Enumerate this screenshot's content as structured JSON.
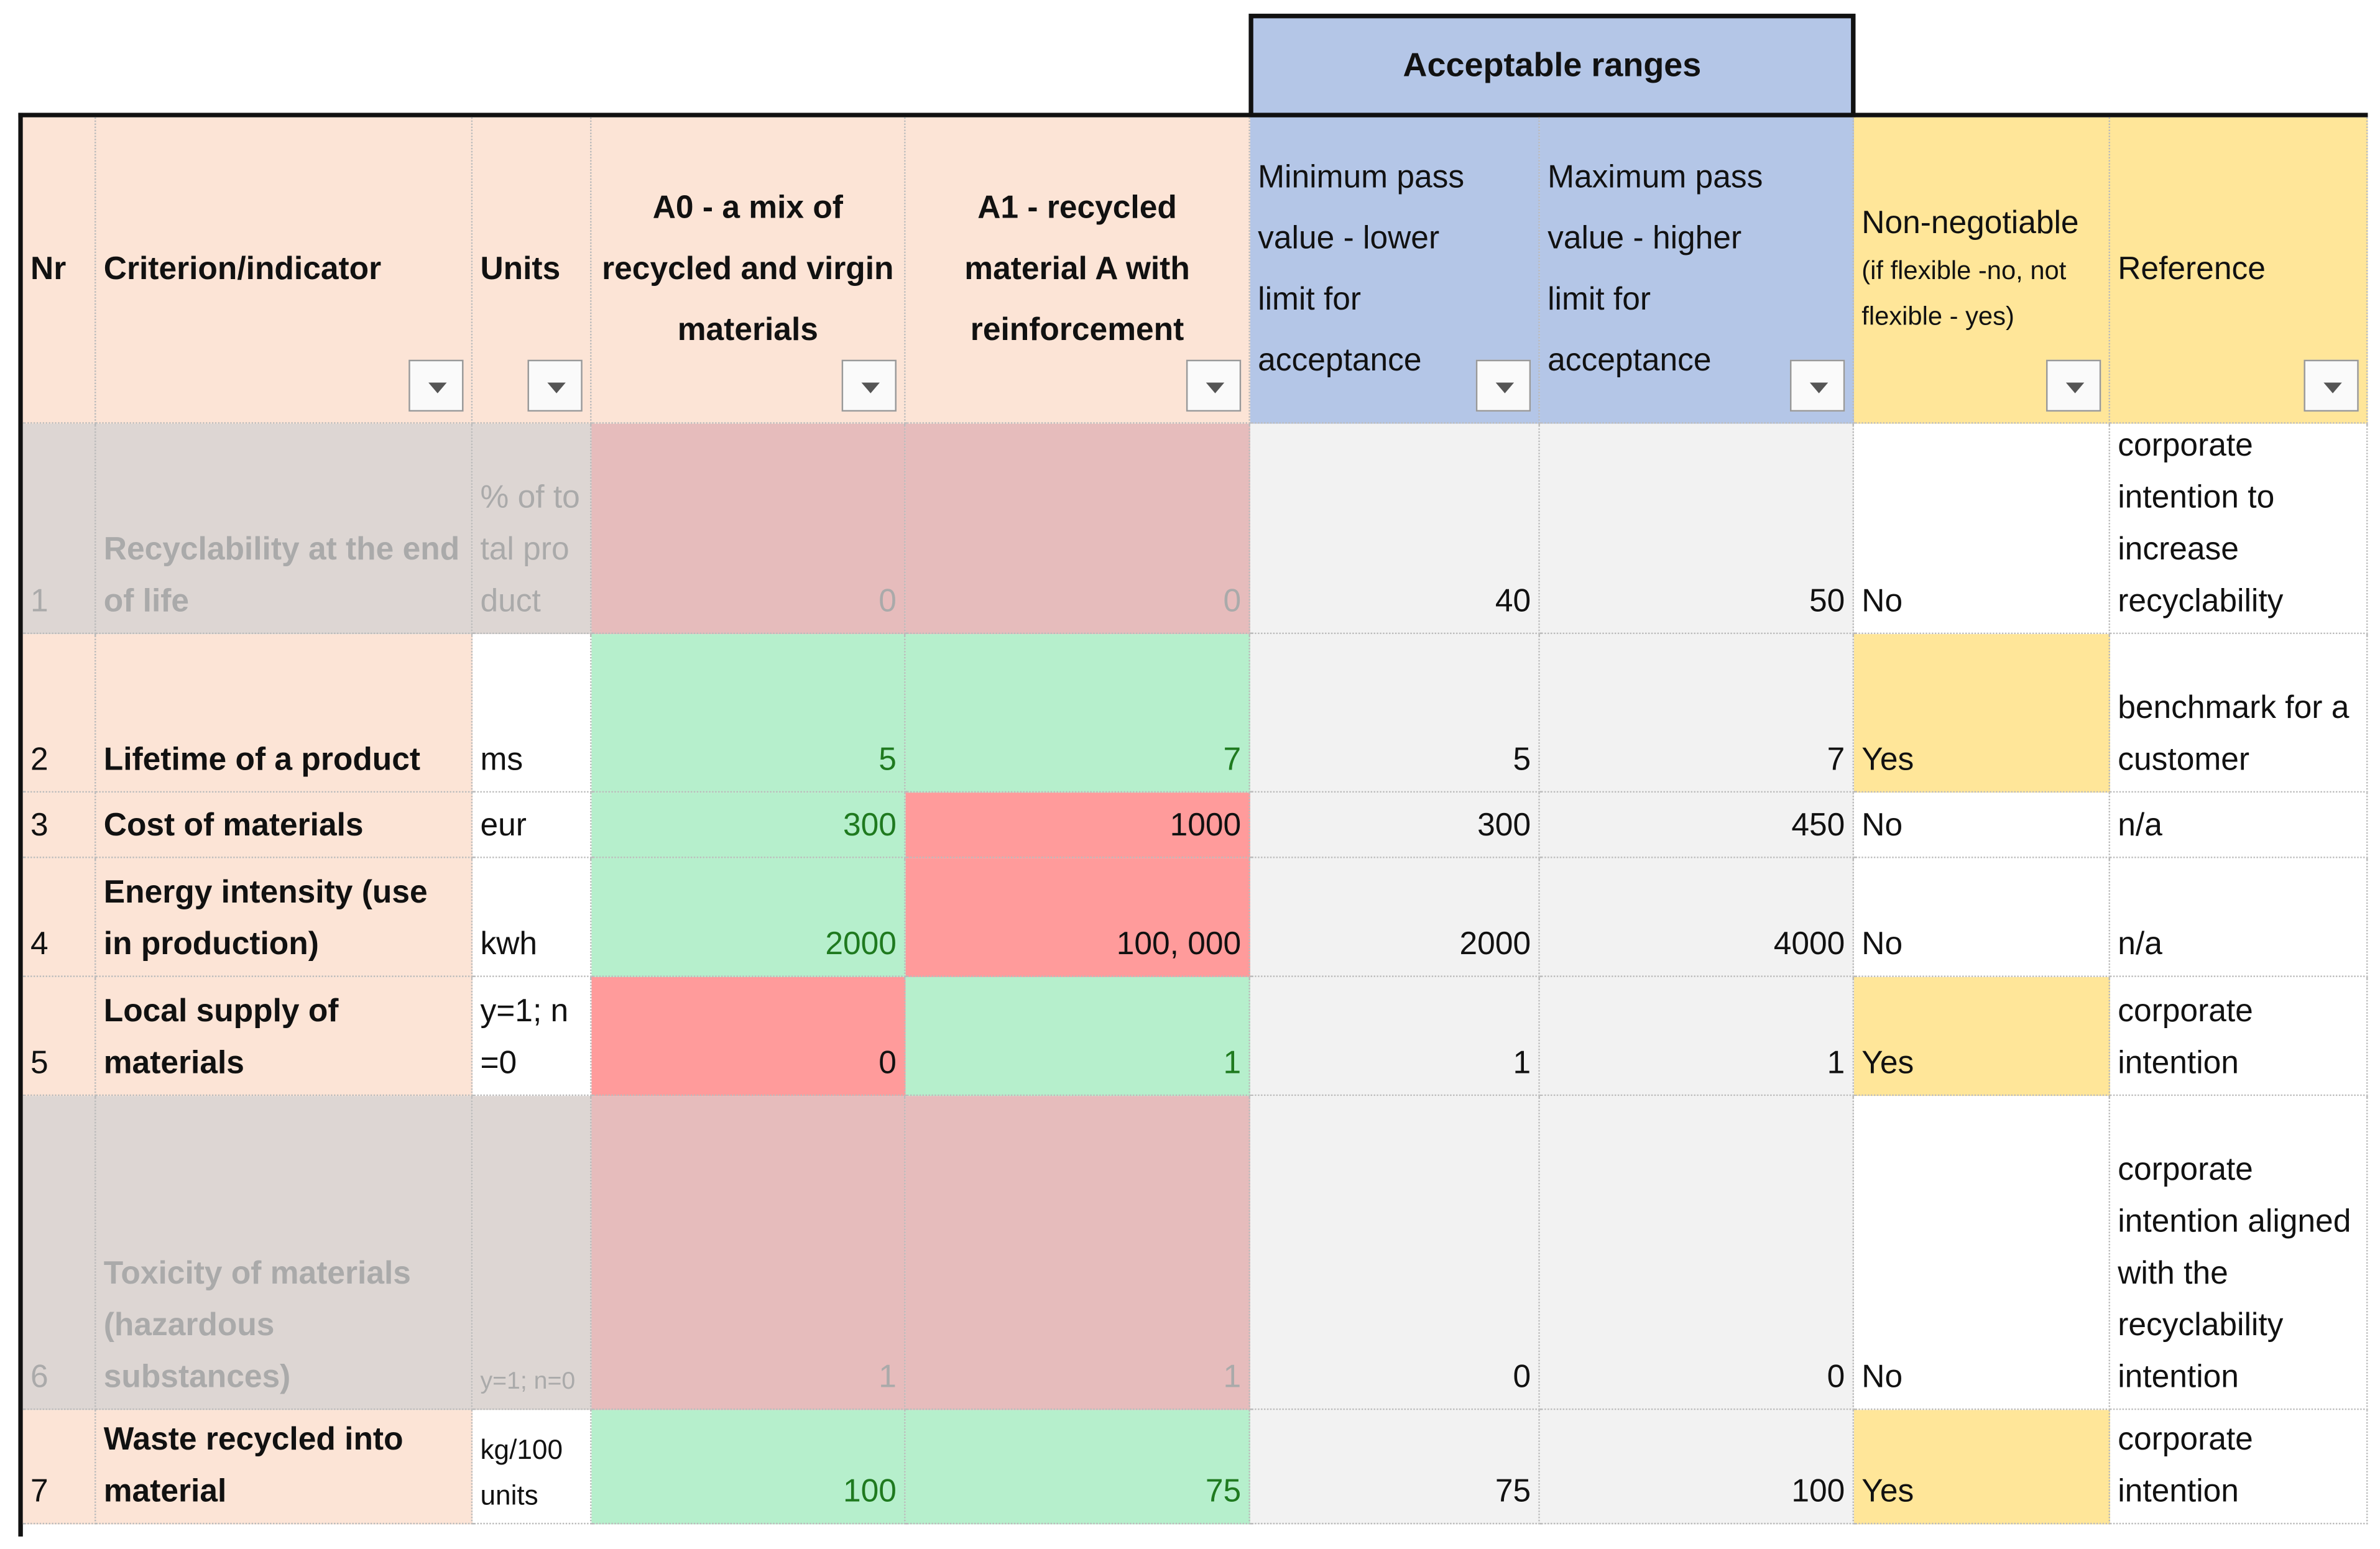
{
  "header": {
    "group_label": "Acceptable ranges"
  },
  "table": {
    "columns": [
      "Nr",
      "Criterion/indicator",
      "Units",
      "A0 - a mix of recycled and virgin materials",
      "A1 - recycled material A with reinforcement",
      "Minimum pass value - lower limit for acceptance",
      "Maximum pass value - higher limit for acceptance",
      {
        "main": "Non-negotiable",
        "note": "(if flexible -no, not flexible - yes)"
      },
      "Reference"
    ],
    "rows": [
      [
        "1",
        "Recyclability at the end of life",
        "% of total product",
        "0",
        "0",
        "40",
        "50",
        "No",
        "corporate intention to increase recyclability"
      ],
      [
        "2",
        "Lifetime of a product",
        "ms",
        "5",
        "7",
        "5",
        "7",
        "Yes",
        "benchmark for a customer"
      ],
      [
        "3",
        "Cost of materials",
        "eur",
        "300",
        "1000",
        "300",
        "450",
        "No",
        "n/a"
      ],
      [
        "4",
        "Energy intensity (use in production)",
        "kwh",
        "2000",
        "100, 000",
        "2000",
        "4000",
        "No",
        "n/a"
      ],
      [
        "5",
        "Local supply of materials",
        "y=1; n=0",
        "0",
        "1",
        "1",
        "1",
        "Yes",
        "corporate intention"
      ],
      [
        "6",
        "Toxicity of materials (hazardous substances)",
        "y=1; n=0",
        "1",
        "1",
        "0",
        "0",
        "No",
        "corporate intention aligned with the recyclability intention"
      ],
      [
        "7",
        "Waste recycled into material",
        "kg/100 units",
        "100",
        "75",
        "75",
        "100",
        "Yes",
        "corporate intention"
      ]
    ]
  }
}
